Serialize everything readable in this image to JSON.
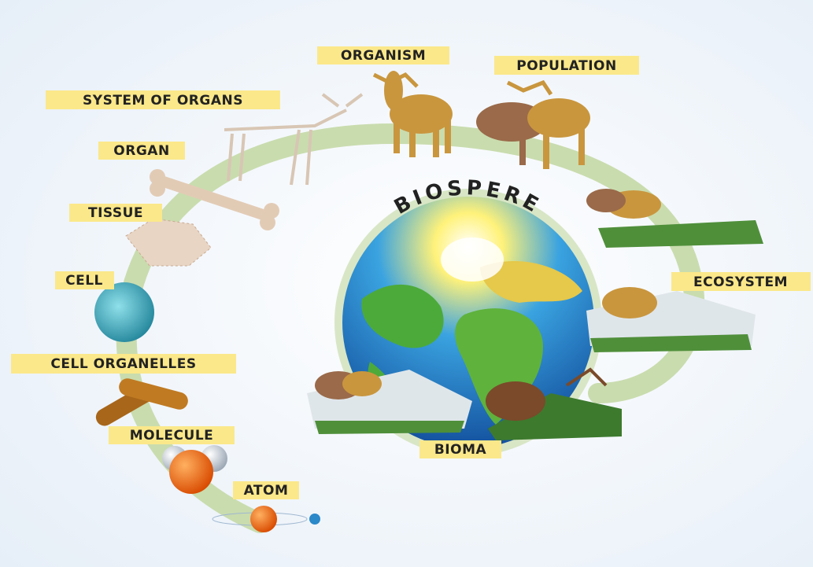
{
  "title": "BIOSPERE",
  "nodes": [
    {
      "label": "ATOM"
    },
    {
      "label": "MOLECULE"
    },
    {
      "label": "CELL ORGANELLES"
    },
    {
      "label": "CELL"
    },
    {
      "label": "TISSUE"
    },
    {
      "label": "ORGAN"
    },
    {
      "label": "SYSTEM OF ORGANS"
    },
    {
      "label": "ORGANISM"
    },
    {
      "label": "POPULATION"
    },
    {
      "label": "ECOSYSTEM"
    },
    {
      "label": "BIOMA"
    }
  ]
}
